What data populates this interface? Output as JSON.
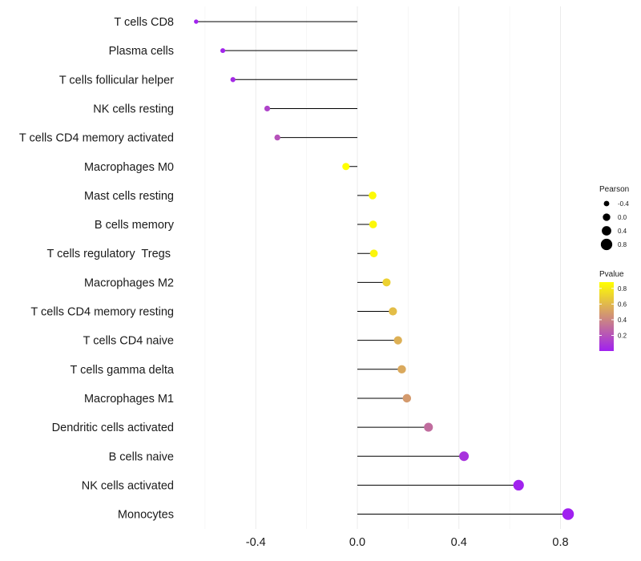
{
  "chart_data": {
    "type": "lollipop",
    "title": "",
    "xlabel": "",
    "ylabel": "",
    "xlim": [
      -0.7,
      0.85
    ],
    "xticks": [
      -0.4,
      0.0,
      0.4,
      0.8
    ],
    "xtick_labels": [
      "-0.4",
      "0.0",
      "0.4",
      "0.8"
    ],
    "grid": true,
    "series": [
      {
        "label": "T cells CD8",
        "pearson": -0.635,
        "pvalue": 0.01
      },
      {
        "label": "Plasma cells",
        "pearson": -0.53,
        "pvalue": 0.02
      },
      {
        "label": "T cells follicular helper",
        "pearson": -0.49,
        "pvalue": 0.04
      },
      {
        "label": "NK cells resting",
        "pearson": -0.355,
        "pvalue": 0.14
      },
      {
        "label": "T cells CD4 memory activated",
        "pearson": -0.315,
        "pvalue": 0.2
      },
      {
        "label": "Macrophages M0",
        "pearson": -0.045,
        "pvalue": 0.88
      },
      {
        "label": "Mast cells resting",
        "pearson": 0.06,
        "pvalue": 0.86
      },
      {
        "label": "B cells memory",
        "pearson": 0.062,
        "pvalue": 0.85
      },
      {
        "label": "T cells regulatory  Tregs ",
        "pearson": 0.065,
        "pvalue": 0.84
      },
      {
        "label": "Macrophages M2",
        "pearson": 0.115,
        "pvalue": 0.7
      },
      {
        "label": "T cells CD4 memory resting",
        "pearson": 0.14,
        "pvalue": 0.62
      },
      {
        "label": "T cells CD4 naive",
        "pearson": 0.16,
        "pvalue": 0.57
      },
      {
        "label": "T cells gamma delta",
        "pearson": 0.175,
        "pvalue": 0.54
      },
      {
        "label": "Macrophages M1",
        "pearson": 0.195,
        "pvalue": 0.48
      },
      {
        "label": "Dendritic cells activated",
        "pearson": 0.28,
        "pvalue": 0.3
      },
      {
        "label": "B cells naive",
        "pearson": 0.42,
        "pvalue": 0.07
      },
      {
        "label": "NK cells activated",
        "pearson": 0.635,
        "pvalue": 0.01
      },
      {
        "label": "Monocytes",
        "pearson": 0.83,
        "pvalue": 0.001
      }
    ],
    "legend": {
      "size_title": "Pearson",
      "size_values": [
        -0.4,
        0.0,
        0.4,
        0.8
      ],
      "size_labels": [
        "-0.4",
        "0.0",
        "0.4",
        "0.8"
      ],
      "color_title": "Pvalue",
      "color_ticks": [
        0.2,
        0.4,
        0.6,
        0.8
      ],
      "color_labels": [
        "0.2",
        "0.4",
        "0.6",
        "0.8"
      ],
      "color_range": [
        0.001,
        0.88
      ],
      "color_low": "#a020f0",
      "color_high": "#ffff00",
      "placement": "right"
    }
  }
}
